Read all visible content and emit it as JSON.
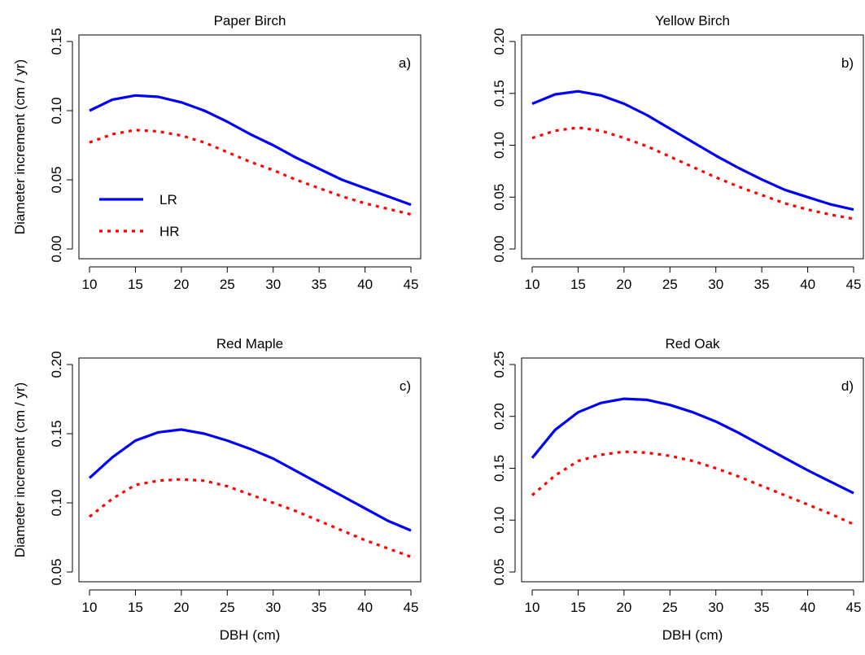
{
  "chart_data": [
    {
      "type": "line",
      "title": "Paper Birch",
      "panel_label": "a)",
      "xlabel": "",
      "ylabel": "Diameter increment (cm / yr)",
      "xlim": [
        10,
        45
      ],
      "ylim": [
        0.0,
        0.15
      ],
      "xticks": [
        "10",
        "15",
        "20",
        "25",
        "30",
        "35",
        "40",
        "45"
      ],
      "yticks": [
        "0.00",
        "0.05",
        "0.10",
        "0.15"
      ],
      "x": [
        10,
        12.5,
        15,
        17.5,
        20,
        22.5,
        25,
        27.5,
        30,
        32.5,
        35,
        37.5,
        40,
        42.5,
        45
      ],
      "series": [
        {
          "name": "LR",
          "color": "#0000ff",
          "style": "solid",
          "values": [
            0.1,
            0.108,
            0.111,
            0.11,
            0.106,
            0.1,
            0.092,
            0.083,
            0.075,
            0.066,
            0.058,
            0.05,
            0.044,
            0.038,
            0.032
          ]
        },
        {
          "name": "HR",
          "color": "#ff0000",
          "style": "dotted",
          "values": [
            0.077,
            0.083,
            0.086,
            0.085,
            0.082,
            0.077,
            0.07,
            0.063,
            0.057,
            0.05,
            0.044,
            0.038,
            0.033,
            0.029,
            0.025
          ]
        }
      ],
      "legend": {
        "placement": "bottom-left",
        "entries": [
          "LR",
          "HR"
        ]
      }
    },
    {
      "type": "line",
      "title": "Yellow Birch",
      "panel_label": "b)",
      "xlabel": "",
      "ylabel": "",
      "xlim": [
        10,
        45
      ],
      "ylim": [
        0.0,
        0.2
      ],
      "xticks": [
        "10",
        "15",
        "20",
        "25",
        "30",
        "35",
        "40",
        "45"
      ],
      "yticks": [
        "0.00",
        "0.05",
        "0.10",
        "0.15",
        "0.20"
      ],
      "x": [
        10,
        12.5,
        15,
        17.5,
        20,
        22.5,
        25,
        27.5,
        30,
        32.5,
        35,
        37.5,
        40,
        42.5,
        45
      ],
      "series": [
        {
          "name": "LR",
          "color": "#0000ff",
          "style": "solid",
          "values": [
            0.14,
            0.149,
            0.152,
            0.148,
            0.14,
            0.129,
            0.116,
            0.103,
            0.09,
            0.078,
            0.067,
            0.057,
            0.05,
            0.043,
            0.038
          ]
        },
        {
          "name": "HR",
          "color": "#ff0000",
          "style": "dotted",
          "values": [
            0.107,
            0.114,
            0.117,
            0.114,
            0.107,
            0.099,
            0.089,
            0.079,
            0.069,
            0.06,
            0.052,
            0.044,
            0.038,
            0.033,
            0.029
          ]
        }
      ]
    },
    {
      "type": "line",
      "title": "Red Maple",
      "panel_label": "c)",
      "xlabel": "DBH (cm)",
      "ylabel": "Diameter increment (cm / yr)",
      "xlim": [
        10,
        45
      ],
      "ylim": [
        0.05,
        0.2
      ],
      "xticks": [
        "10",
        "15",
        "20",
        "25",
        "30",
        "35",
        "40",
        "45"
      ],
      "yticks": [
        "0.05",
        "0.10",
        "0.15",
        "0.20"
      ],
      "x": [
        10,
        12.5,
        15,
        17.5,
        20,
        22.5,
        25,
        27.5,
        30,
        32.5,
        35,
        37.5,
        40,
        42.5,
        45
      ],
      "series": [
        {
          "name": "LR",
          "color": "#0000ff",
          "style": "solid",
          "values": [
            0.118,
            0.133,
            0.145,
            0.151,
            0.153,
            0.15,
            0.145,
            0.139,
            0.132,
            0.123,
            0.114,
            0.105,
            0.096,
            0.087,
            0.08
          ]
        },
        {
          "name": "HR",
          "color": "#ff0000",
          "style": "dotted",
          "values": [
            0.09,
            0.103,
            0.113,
            0.116,
            0.117,
            0.116,
            0.112,
            0.106,
            0.1,
            0.094,
            0.087,
            0.08,
            0.073,
            0.067,
            0.061
          ]
        }
      ]
    },
    {
      "type": "line",
      "title": "Red Oak",
      "panel_label": "d)",
      "xlabel": "DBH (cm)",
      "ylabel": "",
      "xlim": [
        10,
        45
      ],
      "ylim": [
        0.05,
        0.25
      ],
      "xticks": [
        "10",
        "15",
        "20",
        "25",
        "30",
        "35",
        "40",
        "45"
      ],
      "yticks": [
        "0.05",
        "0.10",
        "0.15",
        "0.20",
        "0.25"
      ],
      "x": [
        10,
        12.5,
        15,
        17.5,
        20,
        22.5,
        25,
        27.5,
        30,
        32.5,
        35,
        37.5,
        40,
        42.5,
        45
      ],
      "series": [
        {
          "name": "LR",
          "color": "#0000ff",
          "style": "solid",
          "values": [
            0.16,
            0.187,
            0.204,
            0.213,
            0.217,
            0.216,
            0.211,
            0.204,
            0.195,
            0.184,
            0.172,
            0.16,
            0.148,
            0.137,
            0.126
          ]
        },
        {
          "name": "HR",
          "color": "#ff0000",
          "style": "dotted",
          "values": [
            0.124,
            0.143,
            0.157,
            0.163,
            0.166,
            0.165,
            0.162,
            0.157,
            0.15,
            0.142,
            0.133,
            0.124,
            0.115,
            0.106,
            0.096
          ]
        }
      ]
    }
  ]
}
